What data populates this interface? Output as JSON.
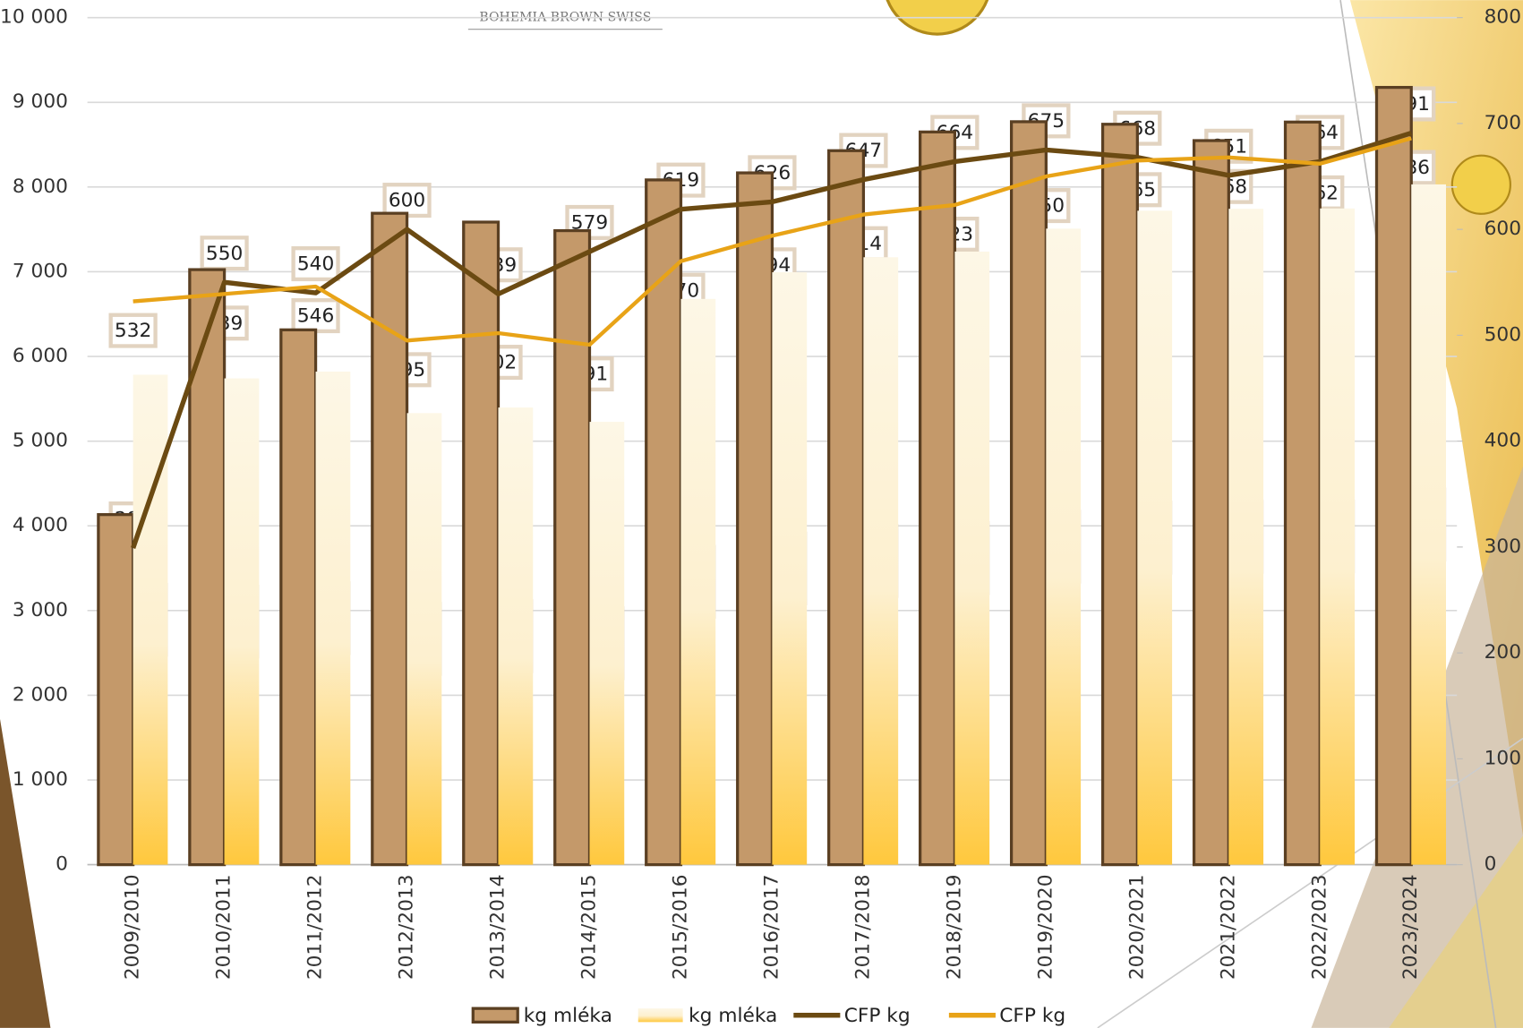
{
  "chart_data": {
    "type": "bar",
    "annotations": [
      "BOHEMIA BROWN SWISS"
    ],
    "categories": [
      "2009/2010",
      "2010/2011",
      "2011/2012",
      "2012/2013",
      "2013/2014",
      "2014/2015",
      "2015/2016",
      "2016/2017",
      "2017/2018",
      "2018/2019",
      "2019/2020",
      "2020/2021",
      "2021/2022",
      "2022/2023",
      "2023/2024"
    ],
    "series": [
      {
        "name": "kg mléka",
        "type": "bar",
        "color": "#c4996a",
        "values": [
          4133,
          7025,
          6314,
          7690,
          7586,
          7485,
          8084,
          8167,
          8429,
          8650,
          8771,
          8741,
          8548,
          8767,
          9176
        ],
        "value_labels": [
          "4 133",
          "7 025",
          "6 314",
          "7 690",
          "7 586",
          "7 485",
          "8 084",
          "8 167",
          "8 429",
          "8 650",
          "8 771",
          "8 741",
          "8 548",
          "8 767",
          "9 176"
        ]
      },
      {
        "name": "kg mléka",
        "type": "bar",
        "color": "#ffc83d",
        "values": [
          5784,
          5741,
          5821,
          5331,
          5397,
          5228,
          6679,
          6994,
          7171,
          7238,
          7509,
          7720,
          7743,
          7747,
          8031
        ],
        "value_labels": [
          "5 784",
          "5 741",
          "5 821",
          "5 331",
          "5 397",
          "5 228",
          "6 679",
          "6 994",
          "7 171",
          "7 238",
          "7 509",
          "7 720",
          "7 743",
          "7 747",
          "8 031"
        ]
      },
      {
        "name": "CFP kg",
        "type": "line",
        "axis": "y2",
        "color": "#6b4a12",
        "values": [
          299,
          550,
          540,
          600,
          539,
          579,
          619,
          626,
          647,
          664,
          675,
          668,
          651,
          664,
          691
        ]
      },
      {
        "name": "CFP kg",
        "type": "line",
        "axis": "y2",
        "color": "#e8a317",
        "values": [
          532,
          539,
          546,
          495,
          502,
          491,
          570,
          594,
          614,
          623,
          650,
          665,
          668,
          662,
          686
        ]
      }
    ],
    "ylim": [
      0,
      10000
    ],
    "yticks": [
      0,
      {
        "value": 1000,
        "label": "1 000"
      },
      {
        "value": 2000,
        "label": "2 000"
      },
      {
        "value": 3000,
        "label": "3 000"
      },
      {
        "value": 4000,
        "label": "4 000"
      },
      {
        "value": 5000,
        "label": "5 000"
      },
      {
        "value": 6000,
        "label": "6 000"
      },
      {
        "value": 7000,
        "label": "7 000"
      },
      {
        "value": 8000,
        "label": "8 000"
      },
      {
        "value": 9000,
        "label": "9 000"
      },
      {
        "value": 10000,
        "label": "10 000"
      }
    ],
    "y2lim": [
      0,
      800
    ],
    "y2ticks": [
      0,
      100,
      200,
      300,
      400,
      500,
      600,
      700,
      800
    ],
    "grid": true,
    "legend": "bottom"
  }
}
